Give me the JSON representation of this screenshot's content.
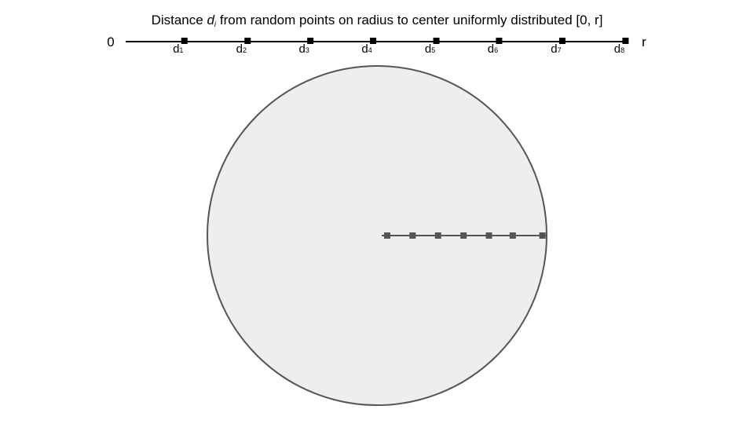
{
  "title": {
    "prefix": "Distance ",
    "variable": "d",
    "subscript": "i",
    "suffix": " from random points on radius to center uniformly distributed [0, r]"
  },
  "number_line": {
    "start_label": "0",
    "end_label": "r",
    "tick_base": "d",
    "tick_subscripts": [
      "1",
      "2",
      "3",
      "4",
      "5",
      "6",
      "7",
      "8"
    ],
    "tick_fractions": [
      0.117,
      0.243,
      0.368,
      0.493,
      0.619,
      0.744,
      0.87,
      0.996
    ]
  },
  "circle": {
    "radius_marker_fractions": [
      0.06,
      0.21,
      0.36,
      0.51,
      0.66,
      0.8,
      0.975
    ],
    "fill_color": "#eeeeee",
    "stroke_color": "#555555"
  }
}
